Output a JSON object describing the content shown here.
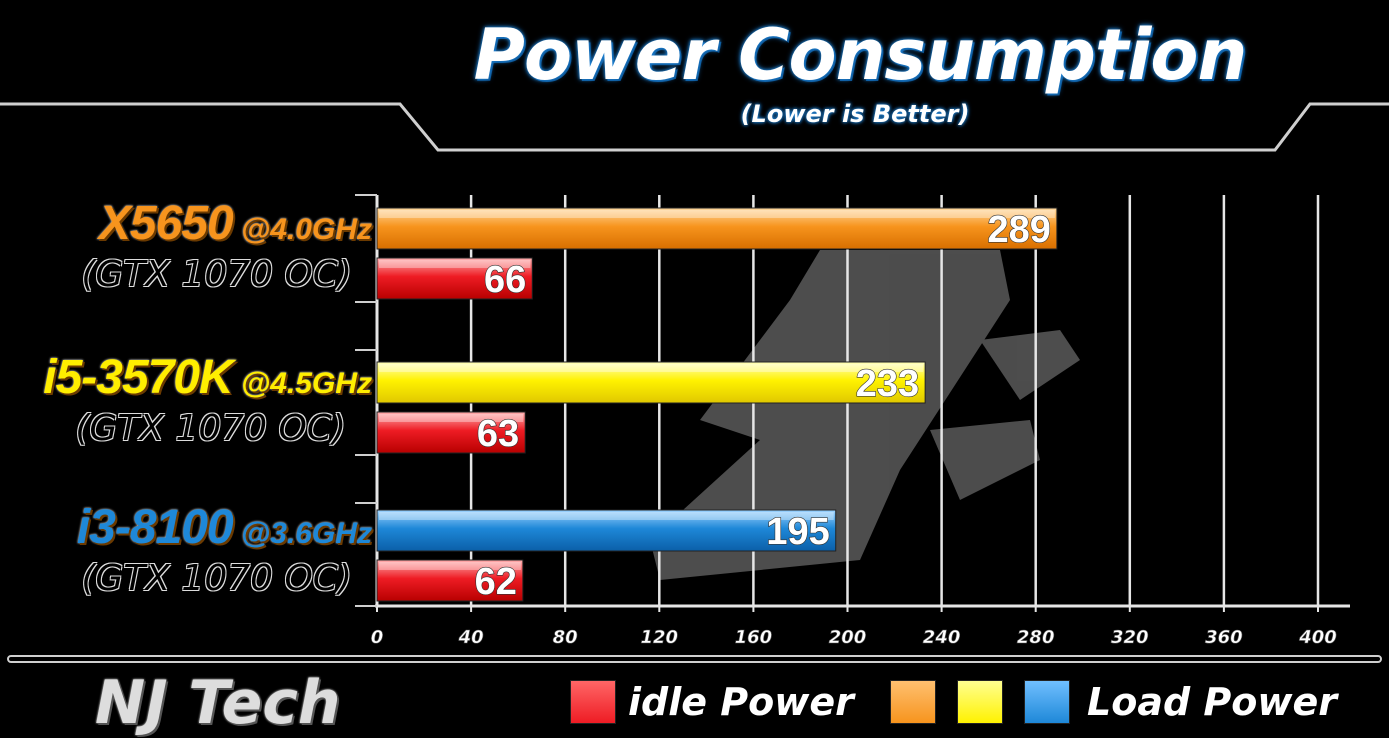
{
  "title": "Power Consumption",
  "subtitle": "(Lower is Better)",
  "brand": "NJ Tech",
  "chart_data": {
    "type": "bar",
    "orientation": "horizontal",
    "categories": [
      {
        "cpu": "X5650",
        "freq": "@4.0GHz",
        "gpu": "(GTX 1070 OC)",
        "cpu_color": "#f7941d"
      },
      {
        "cpu": "i5-3570K",
        "freq": "@4.5GHz",
        "gpu": "(GTX 1070 OC)",
        "cpu_color": "#ffee00"
      },
      {
        "cpu": "i3-8100",
        "freq": "@3.6GHz",
        "gpu": "(GTX 1070 OC)",
        "cpu_color": "#1e88d8"
      }
    ],
    "series": [
      {
        "name": "Load Power",
        "values": [
          289,
          233,
          195
        ],
        "colors": [
          "#f7941d",
          "#ffee00",
          "#1e88d8"
        ]
      },
      {
        "name": "idle Power",
        "values": [
          66,
          63,
          62
        ],
        "colors": [
          "#ee1c24",
          "#ee1c24",
          "#ee1c24"
        ]
      }
    ],
    "x_ticks": [
      0,
      40,
      80,
      120,
      160,
      200,
      240,
      280,
      320,
      360,
      400
    ],
    "xlim": [
      0,
      400
    ],
    "grid": true
  },
  "legend": {
    "idle_label": "idle Power",
    "load_label": "Load Power",
    "idle_color": "#ee1c24",
    "load_colors": [
      "#f7941d",
      "#ffee00",
      "#1e88d8"
    ]
  }
}
